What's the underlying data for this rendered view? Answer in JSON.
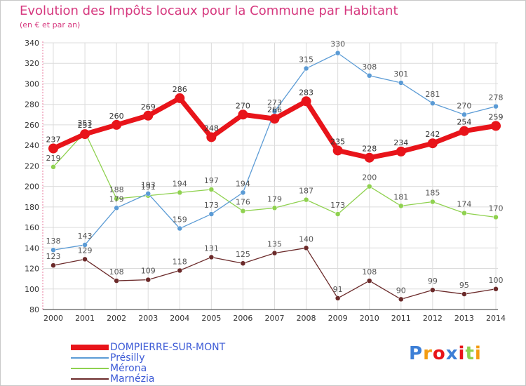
{
  "header": {
    "title": "Evolution des Impôts locaux pour la Commune par Habitant",
    "subtitle": "(en € et par an)"
  },
  "colors": {
    "title": "#d6397f",
    "axis": "#e8789c",
    "grid": "#dcdcdc"
  },
  "chart_data": {
    "type": "line",
    "title": "Evolution des Impôts locaux pour la Commune par Habitant",
    "subtitle": "(en € et par an)",
    "xlabel": "",
    "ylabel": "",
    "x": [
      "2000",
      "2001",
      "2002",
      "2003",
      "2004",
      "2005",
      "2006",
      "2007",
      "2008",
      "2009",
      "2010",
      "2011",
      "2012",
      "2013",
      "2014"
    ],
    "ylim": [
      80,
      340
    ],
    "yticks": [
      80,
      100,
      120,
      140,
      160,
      180,
      200,
      220,
      240,
      260,
      280,
      300,
      320,
      340
    ],
    "grid": true,
    "legend_position": "bottom-left",
    "series": [
      {
        "name": "DOMPIERRE-SUR-MONT",
        "color": "#e8141a",
        "label_color": "#3d5bd6",
        "width": 7,
        "marker": 7,
        "values": [
          237,
          251,
          260,
          269,
          286,
          248,
          270,
          266,
          283,
          235,
          228,
          234,
          242,
          254,
          259
        ],
        "labels": [
          "237",
          "251",
          "260",
          "269",
          "286",
          "248",
          "270",
          "266",
          "283",
          "235",
          "228",
          "234",
          "242",
          "254",
          "259"
        ]
      },
      {
        "name": "Présilly",
        "color": "#5b9bd5",
        "label_color": "#5b9bd5",
        "width": 1.3,
        "marker": 3.5,
        "values": [
          138,
          143,
          179,
          193,
          159,
          173,
          194,
          273,
          315,
          330,
          308,
          301,
          281,
          270,
          278
        ],
        "labels": [
          "138",
          "143",
          "179",
          "193",
          "159",
          "173",
          "194",
          "273",
          "315",
          "330",
          "308",
          "301",
          "281",
          "270",
          "278"
        ]
      },
      {
        "name": "Mérona",
        "color": "#8fd14f",
        "label_color": "#6bb534",
        "width": 1.3,
        "marker": 3.5,
        "values": [
          219,
          253,
          188,
          191,
          194,
          197,
          176,
          179,
          187,
          173,
          200,
          181,
          185,
          174,
          170
        ],
        "labels": [
          "219",
          "253",
          "188",
          "191",
          "194",
          "197",
          "176",
          "179",
          "187",
          "173",
          "200",
          "181",
          "185",
          "174",
          "170"
        ]
      },
      {
        "name": "Marnézia",
        "color": "#6b2a2a",
        "label_color": "#6b2a2a",
        "width": 1.3,
        "marker": 3.5,
        "values": [
          123,
          129,
          108,
          109,
          118,
          131,
          125,
          135,
          140,
          91,
          108,
          90,
          99,
          95,
          100
        ],
        "labels": [
          "123",
          "129",
          "108",
          "109",
          "118",
          "131",
          "125",
          "135",
          "140",
          "91",
          "108",
          "90",
          "99",
          "95",
          "100"
        ]
      }
    ]
  },
  "legend": {
    "items": [
      {
        "label": "DOMPIERRE-SUR-MONT",
        "color": "#e8141a",
        "label_color": "#3d5bd6"
      },
      {
        "label": "Présilly",
        "color": "#5b9bd5",
        "label_color": "#3d5bd6"
      },
      {
        "label": "Mérona",
        "color": "#8fd14f",
        "label_color": "#3d5bd6"
      },
      {
        "label": "Marnézia",
        "color": "#6b2a2a",
        "label_color": "#3d5bd6"
      }
    ]
  },
  "logo": {
    "letters": [
      "P",
      "r",
      "o",
      "x",
      "i",
      "t",
      "i"
    ],
    "colors": [
      "#3d7fd6",
      "#f39c12",
      "#e8141a",
      "#3d7fd6",
      "#e8141a",
      "#8fd14f",
      "#f39c12"
    ]
  }
}
